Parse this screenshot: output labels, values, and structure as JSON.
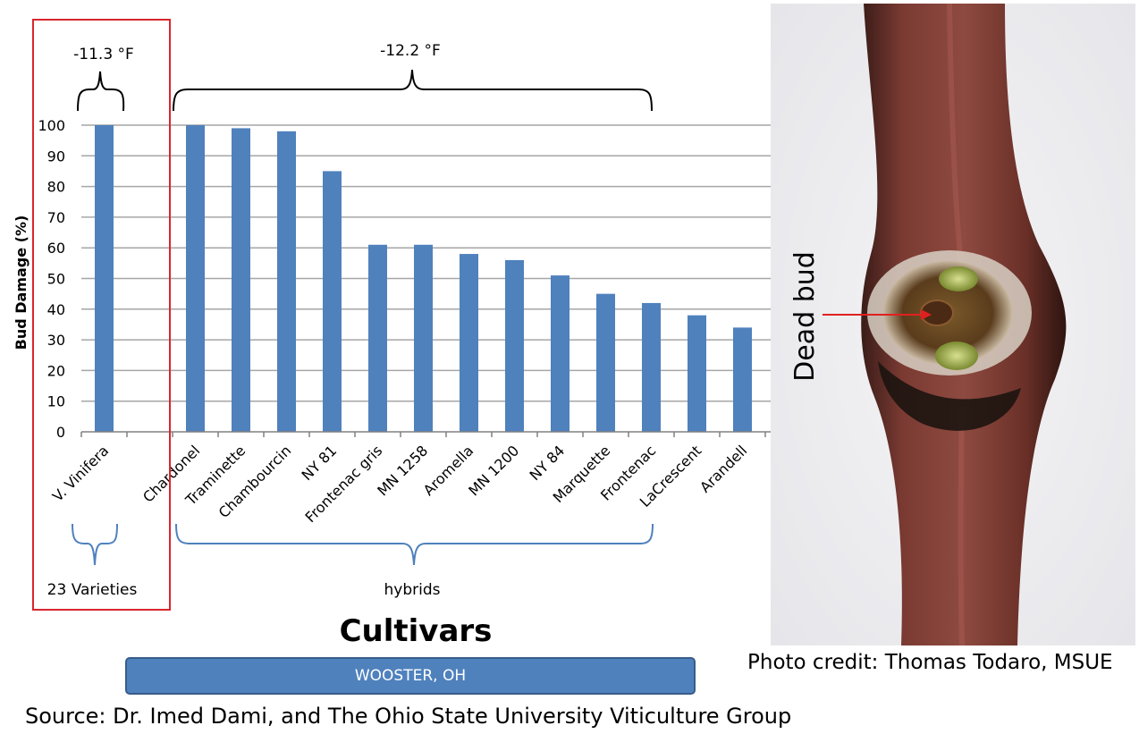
{
  "chart_data": {
    "type": "bar",
    "ylabel": "Bud Damage (%)",
    "xlabel": "Cultivars",
    "ylim": [
      0,
      100
    ],
    "yticks": [
      0,
      10,
      20,
      30,
      40,
      50,
      60,
      70,
      80,
      90,
      100
    ],
    "grid": true,
    "categories": [
      "V. Vinifera",
      "",
      "Chardonel",
      "Traminette",
      "Chambourcin",
      "NY 81",
      "Frontenac gris",
      "MN 1258",
      "Aromella",
      "MN 1200",
      "NY 84",
      "Marquette",
      "Frontenac",
      "LaCrescent",
      "Arandell"
    ],
    "values": [
      100,
      null,
      100,
      99,
      98,
      85,
      61,
      61,
      58,
      56,
      51,
      45,
      42,
      38,
      34
    ],
    "bar_color": "#4f81bd",
    "grid_color": "#a6a6a6",
    "annotations": {
      "temp_vinifera": "-11.3  °F",
      "temp_hybrids": "-12.2  °F",
      "group_vinifera": "23 Varieties",
      "group_hybrids": "hybrids"
    },
    "highlight_box_color": "#d9262c"
  },
  "photo": {
    "label": "Dead bud",
    "credit": "Photo credit: Thomas Todaro, MSUE",
    "arrow_color": "#e02020"
  },
  "location_label": "WOOSTER, OH",
  "source": "Source: Dr. Imed Dami, and The Ohio State University Viticulture Group"
}
